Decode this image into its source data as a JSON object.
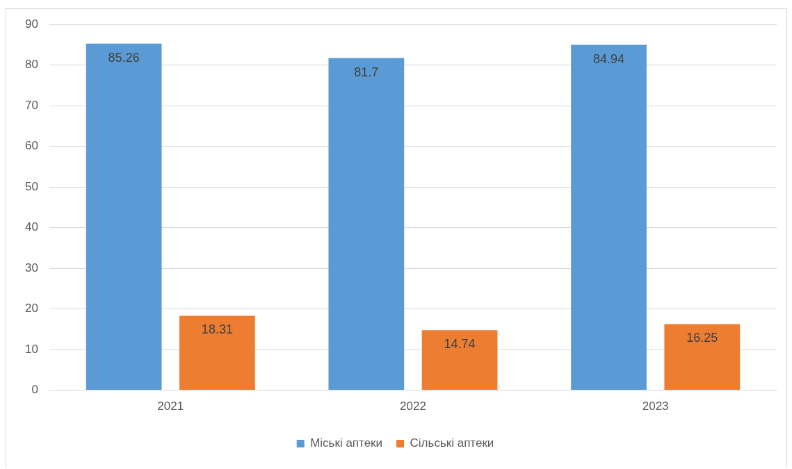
{
  "chart_data": {
    "type": "bar",
    "categories": [
      "2021",
      "2022",
      "2023"
    ],
    "series": [
      {
        "name": "Міські аптеки",
        "color": "#5b9bd5",
        "values": [
          85.26,
          81.7,
          84.94
        ]
      },
      {
        "name": "Сільські аптеки",
        "color": "#ed7d31",
        "values": [
          18.31,
          14.74,
          16.25
        ]
      }
    ],
    "ylim": [
      0,
      90
    ],
    "yticks": [
      0,
      10,
      20,
      30,
      40,
      50,
      60,
      70,
      80,
      90
    ],
    "grid": "y",
    "legend": "bottom",
    "data_labels": true
  }
}
